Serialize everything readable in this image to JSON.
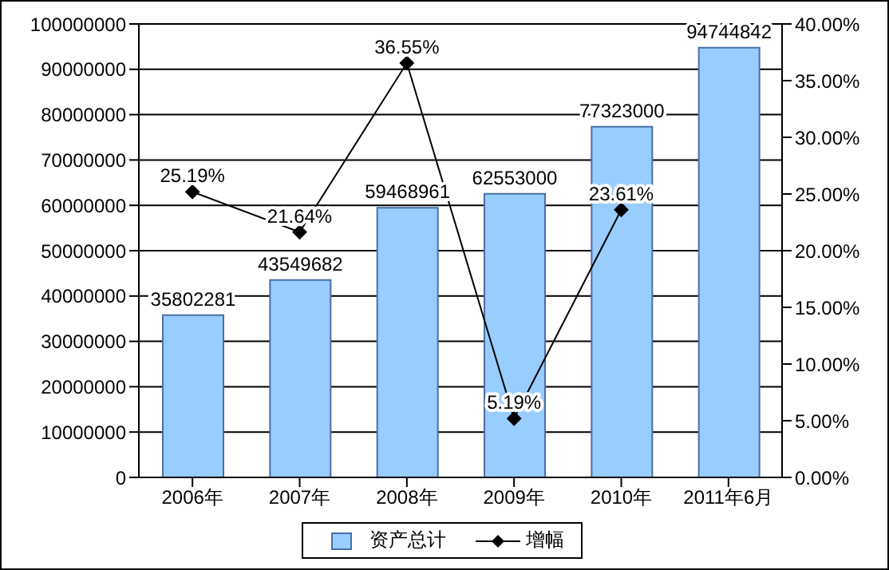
{
  "chart_data": {
    "type": "bar",
    "categories": [
      "2006年",
      "2007年",
      "2008年",
      "2009年",
      "2010年",
      "2011年6月"
    ],
    "series": [
      {
        "name": "资产总计",
        "color": "#99ccff",
        "values": [
          35802281,
          43549682,
          59468961,
          62553000,
          77323000,
          94744842
        ],
        "value_labels": [
          "35802281",
          "43549682",
          "59468961",
          "62553000",
          "77323000",
          "94744842"
        ]
      },
      {
        "name": "增幅",
        "type": "line",
        "axis": "y2",
        "color": "#000000",
        "marker": "diamond",
        "values": [
          25.19,
          21.64,
          36.55,
          5.19,
          23.61,
          null
        ],
        "value_labels": [
          "25.19%",
          "21.64%",
          "36.55%",
          "5.19%",
          "23.61%",
          null
        ]
      }
    ],
    "ylim": [
      0,
      100000000
    ],
    "yticks": [
      0,
      10000000,
      20000000,
      30000000,
      40000000,
      50000000,
      60000000,
      70000000,
      80000000,
      90000000,
      100000000
    ],
    "y2lim": [
      0,
      40
    ],
    "y2ticks": [
      {
        "value": 0,
        "label": "0.00%"
      },
      {
        "value": 5,
        "label": "5.00%"
      },
      {
        "value": 10,
        "label": "10.00%"
      },
      {
        "value": 15,
        "label": "15.00%"
      },
      {
        "value": 20,
        "label": "20.00%"
      },
      {
        "value": 25,
        "label": "25.00%"
      },
      {
        "value": 30,
        "label": "30.00%"
      },
      {
        "value": 35,
        "label": "35.00%"
      },
      {
        "value": 40,
        "label": "40.00%"
      }
    ],
    "grid": "y",
    "legend": "bottom"
  }
}
